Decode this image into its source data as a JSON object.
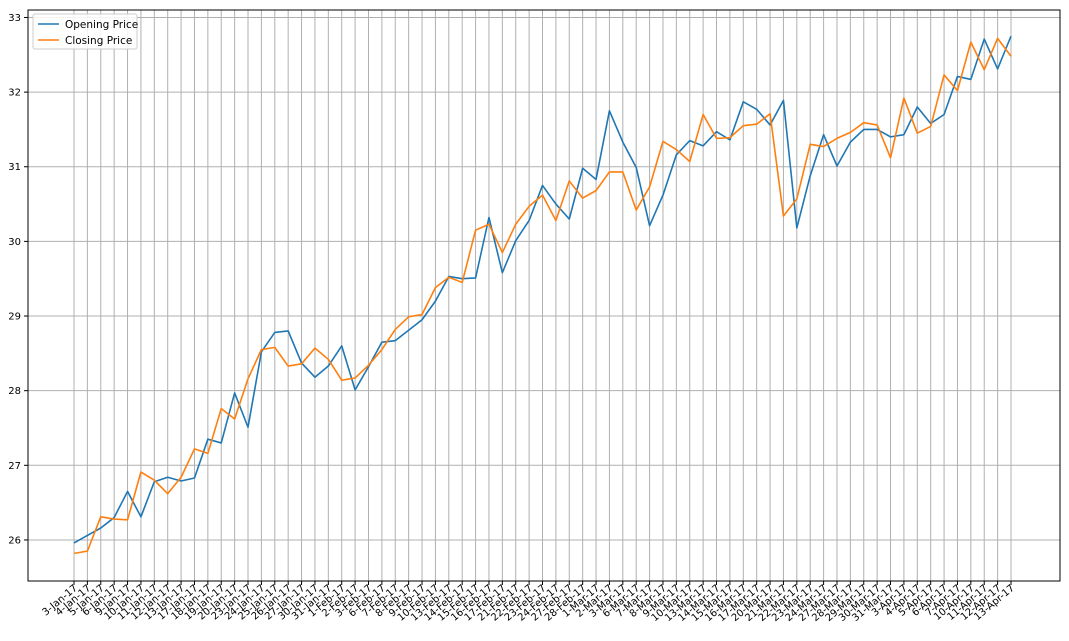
{
  "chart_data": {
    "type": "line",
    "title": "",
    "xlabel": "",
    "ylabel": "",
    "ylim": [
      25.45,
      33.1
    ],
    "yticks": [
      26,
      27,
      28,
      29,
      30,
      31,
      32,
      33
    ],
    "grid": true,
    "legend_position": "top-left",
    "x": [
      "3-Jan-17",
      "4-Jan-17",
      "5-Jan-17",
      "6-Jan-17",
      "9-Jan-17",
      "10-Jan-17",
      "11-Jan-17",
      "12-Jan-17",
      "13-Jan-17",
      "17-Jan-17",
      "18-Jan-17",
      "19-Jan-17",
      "20-Jan-17",
      "23-Jan-17",
      "24-Jan-17",
      "25-Jan-17",
      "26-Jan-17",
      "27-Jan-17",
      "30-Jan-17",
      "31-Jan-17",
      "1-Feb-17",
      "2-Feb-17",
      "3-Feb-17",
      "6-Feb-17",
      "7-Feb-17",
      "8-Feb-17",
      "9-Feb-17",
      "10-Feb-17",
      "13-Feb-17",
      "14-Feb-17",
      "15-Feb-17",
      "16-Feb-17",
      "17-Feb-17",
      "21-Feb-17",
      "22-Feb-17",
      "23-Feb-17",
      "24-Feb-17",
      "27-Feb-17",
      "28-Feb-17",
      "1-Mar-17",
      "2-Mar-17",
      "3-Mar-17",
      "6-Mar-17",
      "7-Mar-17",
      "8-Mar-17",
      "9-Mar-17",
      "10-Mar-17",
      "13-Mar-17",
      "14-Mar-17",
      "15-Mar-17",
      "16-Mar-17",
      "17-Mar-17",
      "20-Mar-17",
      "21-Mar-17",
      "22-Mar-17",
      "23-Mar-17",
      "24-Mar-17",
      "27-Mar-17",
      "28-Mar-17",
      "29-Mar-17",
      "30-Mar-17",
      "31-Mar-17",
      "3-Apr-17",
      "4-Apr-17",
      "5-Apr-17",
      "6-Apr-17",
      "7-Apr-17",
      "10-Apr-17",
      "11-Apr-17",
      "12-Apr-17",
      "13-Apr-17"
    ],
    "series": [
      {
        "name": "Opening Price",
        "color": "#1f77b4",
        "values": [
          25.96,
          26.06,
          26.16,
          26.3,
          26.65,
          26.31,
          26.78,
          26.84,
          26.79,
          26.83,
          27.35,
          27.3,
          27.97,
          27.51,
          28.52,
          28.78,
          28.8,
          28.37,
          28.18,
          28.33,
          28.6,
          28.01,
          28.32,
          28.65,
          28.67,
          28.81,
          28.95,
          29.2,
          29.53,
          29.5,
          29.51,
          30.32,
          29.58,
          30.01,
          30.28,
          30.75,
          30.5,
          30.3,
          30.98,
          30.83,
          31.75,
          31.33,
          30.99,
          30.21,
          30.62,
          31.16,
          31.35,
          31.28,
          31.47,
          31.36,
          31.87,
          31.77,
          31.56,
          31.89,
          30.18,
          30.88,
          31.43,
          31.01,
          31.33,
          31.5,
          31.5,
          31.4,
          31.43,
          31.8,
          31.58,
          31.7,
          32.21,
          32.17,
          32.71,
          32.31,
          32.75
        ]
      },
      {
        "name": "Closing Price",
        "color": "#ff7f0e",
        "values": [
          25.82,
          25.85,
          26.31,
          26.28,
          26.27,
          26.91,
          26.8,
          26.62,
          26.84,
          27.22,
          27.16,
          27.76,
          27.62,
          28.16,
          28.55,
          28.58,
          28.33,
          28.36,
          28.57,
          28.42,
          28.14,
          28.17,
          28.34,
          28.55,
          28.82,
          28.99,
          29.02,
          29.38,
          29.52,
          29.45,
          30.15,
          30.23,
          29.85,
          30.23,
          30.47,
          30.62,
          30.28,
          30.81,
          30.58,
          30.68,
          30.93,
          30.93,
          30.42,
          30.73,
          31.34,
          31.23,
          31.07,
          31.7,
          31.38,
          31.39,
          31.55,
          31.57,
          31.71,
          30.34,
          30.57,
          31.3,
          31.27,
          31.38,
          31.46,
          31.59,
          31.56,
          31.12,
          31.92,
          31.45,
          31.54,
          32.23,
          32.02,
          32.67,
          32.3,
          32.72,
          32.48
        ]
      }
    ]
  }
}
